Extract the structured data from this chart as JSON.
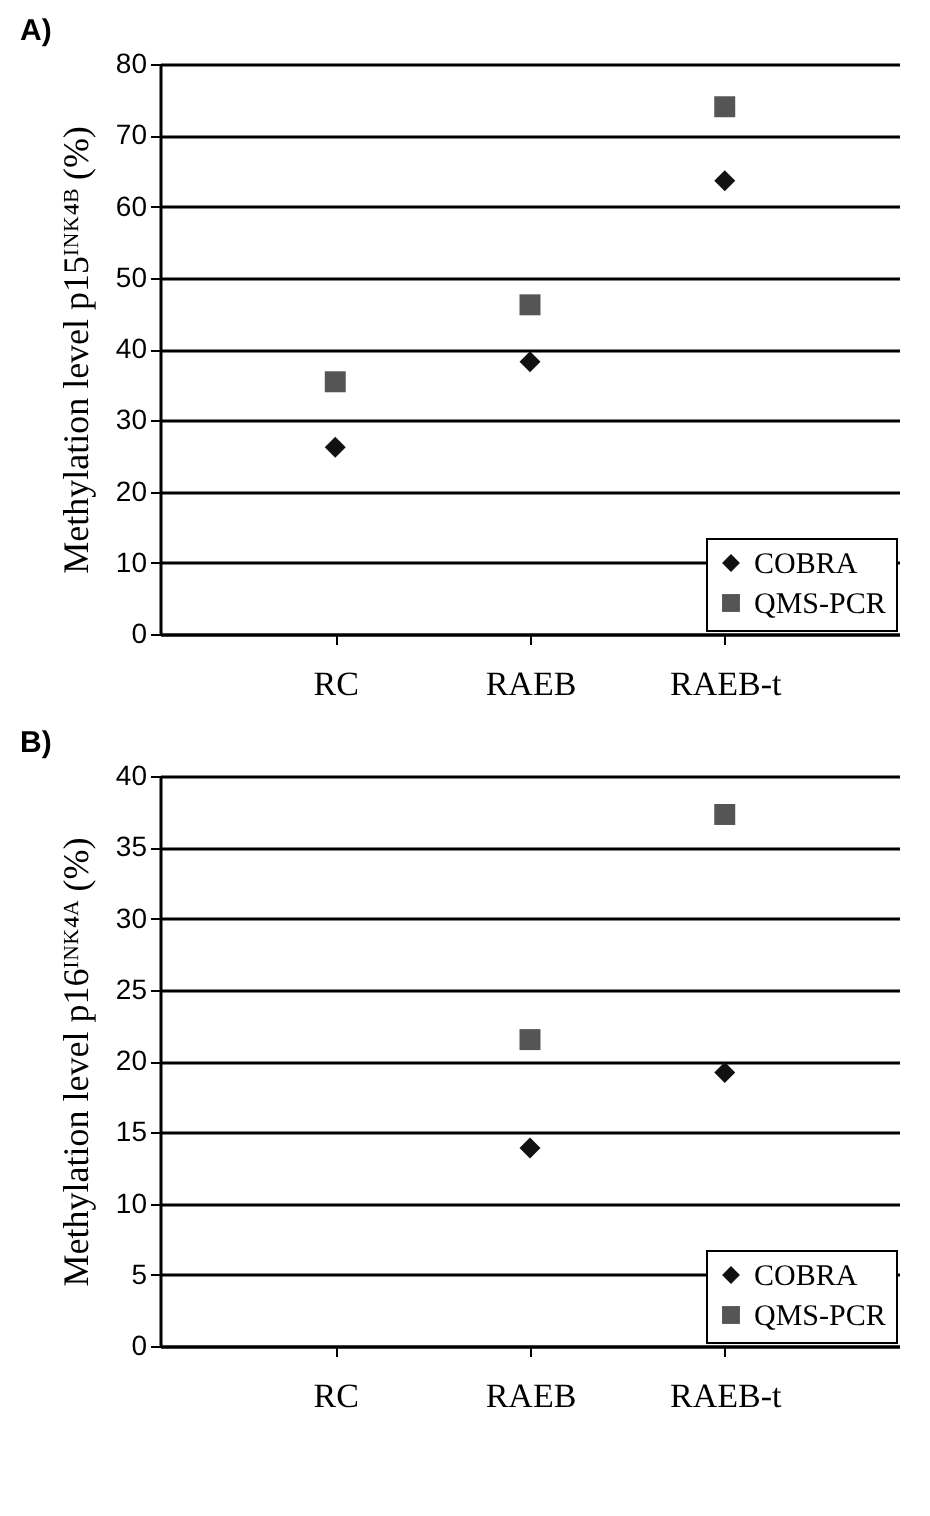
{
  "chart_data": [
    {
      "type": "scatter",
      "title": "A)",
      "ylabel": "Methylation level  p15ᴵᴺᴷ⁴ᴮ (%)",
      "categories": [
        "RC",
        "RAEB",
        "RAEB-t"
      ],
      "ylim": [
        0,
        80
      ],
      "yticks": [
        0,
        10,
        20,
        30,
        40,
        50,
        60,
        70,
        80
      ],
      "grid": "y",
      "legend": "bottom right",
      "series": [
        {
          "name": "COBRA",
          "color": "#111111",
          "marker": "diamond",
          "values": [
            26.2,
            38.2,
            63.6
          ]
        },
        {
          "name": "QMS-PCR",
          "color": "#555555",
          "marker": "square",
          "values": [
            35.4,
            46.2,
            74.0
          ]
        }
      ]
    },
    {
      "type": "scatter",
      "title": "B)",
      "ylabel": "Methylation level  p16ᴵᴺᴷ⁴ᴬ (%)",
      "categories": [
        "RC",
        "RAEB",
        "RAEB-t"
      ],
      "ylim": [
        0,
        40
      ],
      "yticks": [
        0,
        5,
        10,
        15,
        20,
        25,
        30,
        35,
        40
      ],
      "grid": "y",
      "legend": "bottom right",
      "series": [
        {
          "name": "COBRA",
          "color": "#111111",
          "marker": "diamond",
          "values": [
            null,
            13.9,
            19.2
          ]
        },
        {
          "name": "QMS-PCR",
          "color": "#555555",
          "marker": "square",
          "values": [
            null,
            21.5,
            37.3
          ]
        }
      ]
    }
  ]
}
